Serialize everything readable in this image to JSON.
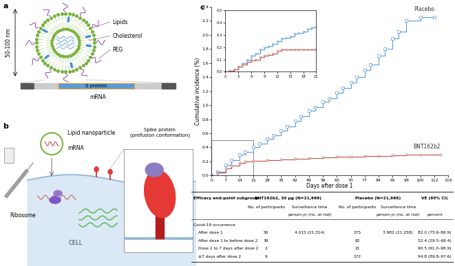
{
  "panels": {
    "a": {
      "label": "a",
      "size": "50-100 nm",
      "components": [
        "Lipids",
        "Cholesterol",
        "PEG"
      ],
      "gene": "S protein",
      "strand": "mRNA"
    },
    "b": {
      "label": "b",
      "particle": "Lipid nanoparticle",
      "mrna": "mRNA",
      "ribosome": "Ribosome",
      "cell": "CELL",
      "protein": "Spike protein\n(prefusion conformation)"
    },
    "c": {
      "label": "c"
    }
  },
  "chart_data": [
    {
      "type": "line",
      "xlabel": "Days after dose 1",
      "ylabel": "Cumulative incidence (%)",
      "xlim": [
        0,
        119
      ],
      "xticks": [
        0,
        7,
        14,
        21,
        28,
        35,
        42,
        49,
        56,
        63,
        70,
        77,
        84,
        91,
        98,
        105,
        112,
        119
      ],
      "ylim": [
        0,
        2.4
      ],
      "yticks": [
        {
          "value": 0.0,
          "label": "0.0"
        },
        {
          "value": 0.2,
          "label": "0.2"
        },
        {
          "value": 0.4,
          "label": "0.4"
        },
        {
          "value": 0.6,
          "label": "0.6"
        },
        {
          "value": 0.8,
          "label": "0.8"
        },
        {
          "value": 1.0,
          "label": "1.0"
        },
        {
          "value": 1.2,
          "label": "1.2"
        },
        {
          "value": 1.4,
          "label": "1.4"
        },
        {
          "value": 1.6,
          "label": "1.6"
        },
        {
          "value": 1.8,
          "label": "1.8"
        },
        {
          "value": 2.0,
          "label": "2.0"
        },
        {
          "value": 2.2,
          "label": "2.2"
        },
        {
          "value": 2.4,
          "label": "2.4"
        }
      ],
      "series": [
        {
          "name": "Placebo",
          "color": "#5b9bd5",
          "marker": "square",
          "line_style": "steps",
          "x": [
            0,
            3,
            7,
            10,
            14,
            17,
            21,
            24,
            28,
            31,
            35,
            38,
            42,
            45,
            49,
            52,
            56,
            59,
            63,
            66,
            70,
            73,
            77,
            80,
            84,
            87,
            91,
            94,
            98,
            105,
            112
          ],
          "values": [
            0,
            0.05,
            0.15,
            0.22,
            0.3,
            0.34,
            0.4,
            0.45,
            0.52,
            0.57,
            0.64,
            0.7,
            0.78,
            0.84,
            0.92,
            0.97,
            1.05,
            1.1,
            1.18,
            1.24,
            1.32,
            1.4,
            1.5,
            1.58,
            1.7,
            1.8,
            1.95,
            2.05,
            2.2,
            2.25,
            2.25
          ]
        },
        {
          "name": "BNT162b2",
          "color": "#c0504d",
          "marker": "circle",
          "line_style": "steps",
          "x": [
            0,
            3,
            7,
            10,
            14,
            17,
            21,
            28,
            35,
            42,
            49,
            56,
            63,
            70,
            77,
            84,
            91,
            98,
            105,
            115
          ],
          "values": [
            0,
            0.04,
            0.1,
            0.14,
            0.18,
            0.2,
            0.21,
            0.22,
            0.23,
            0.24,
            0.25,
            0.26,
            0.27,
            0.27,
            0.28,
            0.28,
            0.29,
            0.3,
            0.3,
            0.3
          ]
        }
      ]
    },
    {
      "type": "line",
      "xlim": [
        0,
        21
      ],
      "xticks": [
        0,
        3,
        6,
        9,
        12,
        15,
        18,
        21
      ],
      "ylim": [
        0,
        0.5
      ],
      "yticks": [
        {
          "value": 0.0,
          "label": "0.0"
        },
        {
          "value": 0.1,
          "label": "0.1"
        },
        {
          "value": 0.2,
          "label": "0.2"
        },
        {
          "value": 0.3,
          "label": "0.3"
        },
        {
          "value": 0.4,
          "label": "0.4"
        },
        {
          "value": 0.5,
          "label": "0.5"
        }
      ],
      "series": [
        {
          "color": "#5b9bd5",
          "marker": "square",
          "line_style": "steps",
          "x": [
            0,
            1,
            2,
            3,
            4,
            5,
            6,
            7,
            8,
            9,
            10,
            11,
            12,
            13,
            14,
            15,
            16,
            17,
            18,
            19,
            20,
            21
          ],
          "values": [
            0,
            0.01,
            0.02,
            0.04,
            0.07,
            0.1,
            0.13,
            0.15,
            0.18,
            0.2,
            0.21,
            0.23,
            0.25,
            0.27,
            0.28,
            0.29,
            0.31,
            0.32,
            0.33,
            0.35,
            0.36,
            0.37
          ]
        },
        {
          "color": "#c0504d",
          "marker": "circle",
          "line_style": "steps",
          "x": [
            0,
            1,
            2,
            3,
            4,
            5,
            6,
            7,
            8,
            9,
            10,
            11,
            12,
            13,
            14,
            15,
            16,
            17,
            18,
            19,
            20,
            21
          ],
          "values": [
            0,
            0.01,
            0.02,
            0.04,
            0.06,
            0.08,
            0.09,
            0.1,
            0.12,
            0.13,
            0.14,
            0.15,
            0.17,
            0.18,
            0.18,
            0.18,
            0.18,
            0.18,
            0.18,
            0.18,
            0.18,
            0.18
          ]
        }
      ]
    }
  ],
  "table": {
    "header": [
      "Efficacy end-point subgroup",
      "BNT162b2, 30 μg (N=21,669)",
      "Placebo (N=21,686)",
      "VE (95% CI)"
    ],
    "subheader": [
      "No. of participants",
      "Surveillance time",
      "No. of participants",
      "Surveillance time"
    ],
    "units": [
      "person-yr (no. at risk)",
      "person-yr (no. at risk)",
      "percent"
    ],
    "section": "Covid-19 occurrence",
    "rows": [
      [
        "After dose 1",
        50,
        "4.015 (21,314)",
        275,
        "3.982 (21,258)",
        "82.0 (75.6–86.9)"
      ],
      [
        "After dose 1 to before dose 2",
        39,
        null,
        82,
        null,
        "52.4 (29.5–68.4)"
      ],
      [
        "Dose 2 to 7 days after dose 2",
        2,
        null,
        21,
        null,
        "90.5 (61.0–98.9)"
      ],
      [
        "≥7 days after dose 2",
        9,
        null,
        172,
        null,
        "94.8 (89.8–97.6)"
      ]
    ]
  }
}
